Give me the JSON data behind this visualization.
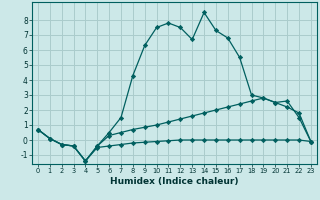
{
  "xlabel": "Humidex (Indice chaleur)",
  "bg_color": "#cce8e8",
  "grid_color": "#aacccc",
  "line_color": "#005f5f",
  "xlim": [
    -0.5,
    23.5
  ],
  "ylim": [
    -1.6,
    9.2
  ],
  "xticks": [
    0,
    1,
    2,
    3,
    4,
    5,
    6,
    7,
    8,
    9,
    10,
    11,
    12,
    13,
    14,
    15,
    16,
    17,
    18,
    19,
    20,
    21,
    22,
    23
  ],
  "yticks": [
    -1,
    0,
    1,
    2,
    3,
    4,
    5,
    6,
    7,
    8
  ],
  "line1_x": [
    0,
    1,
    2,
    3,
    4,
    5,
    6,
    7,
    8,
    9,
    10,
    11,
    12,
    13,
    14,
    15,
    16,
    17,
    18,
    19,
    20,
    21,
    22,
    23
  ],
  "line1_y": [
    0.7,
    0.1,
    -0.3,
    -0.4,
    -1.4,
    -0.5,
    -0.4,
    -0.3,
    -0.2,
    -0.15,
    -0.1,
    -0.05,
    0.0,
    0.0,
    0.0,
    0.0,
    0.0,
    0.0,
    0.0,
    0.0,
    0.0,
    0.0,
    0.0,
    -0.1
  ],
  "line2_x": [
    0,
    1,
    2,
    3,
    4,
    5,
    6,
    7,
    8,
    9,
    10,
    11,
    12,
    13,
    14,
    15,
    16,
    17,
    18,
    19,
    20,
    21,
    22,
    23
  ],
  "line2_y": [
    0.7,
    0.1,
    -0.3,
    -0.4,
    -1.4,
    -0.4,
    0.5,
    1.5,
    4.3,
    6.3,
    7.5,
    7.8,
    7.5,
    6.7,
    8.5,
    7.3,
    6.8,
    5.5,
    3.0,
    2.8,
    2.5,
    2.6,
    1.5,
    -0.1
  ],
  "line3_x": [
    0,
    1,
    2,
    3,
    4,
    5,
    6,
    7,
    8,
    9,
    10,
    11,
    12,
    13,
    14,
    15,
    16,
    17,
    18,
    19,
    20,
    21,
    22,
    23
  ],
  "line3_y": [
    0.7,
    0.1,
    -0.3,
    -0.4,
    -1.4,
    -0.4,
    0.3,
    0.5,
    0.7,
    0.85,
    1.0,
    1.2,
    1.4,
    1.6,
    1.8,
    2.0,
    2.2,
    2.4,
    2.6,
    2.8,
    2.5,
    2.2,
    1.8,
    -0.1
  ]
}
